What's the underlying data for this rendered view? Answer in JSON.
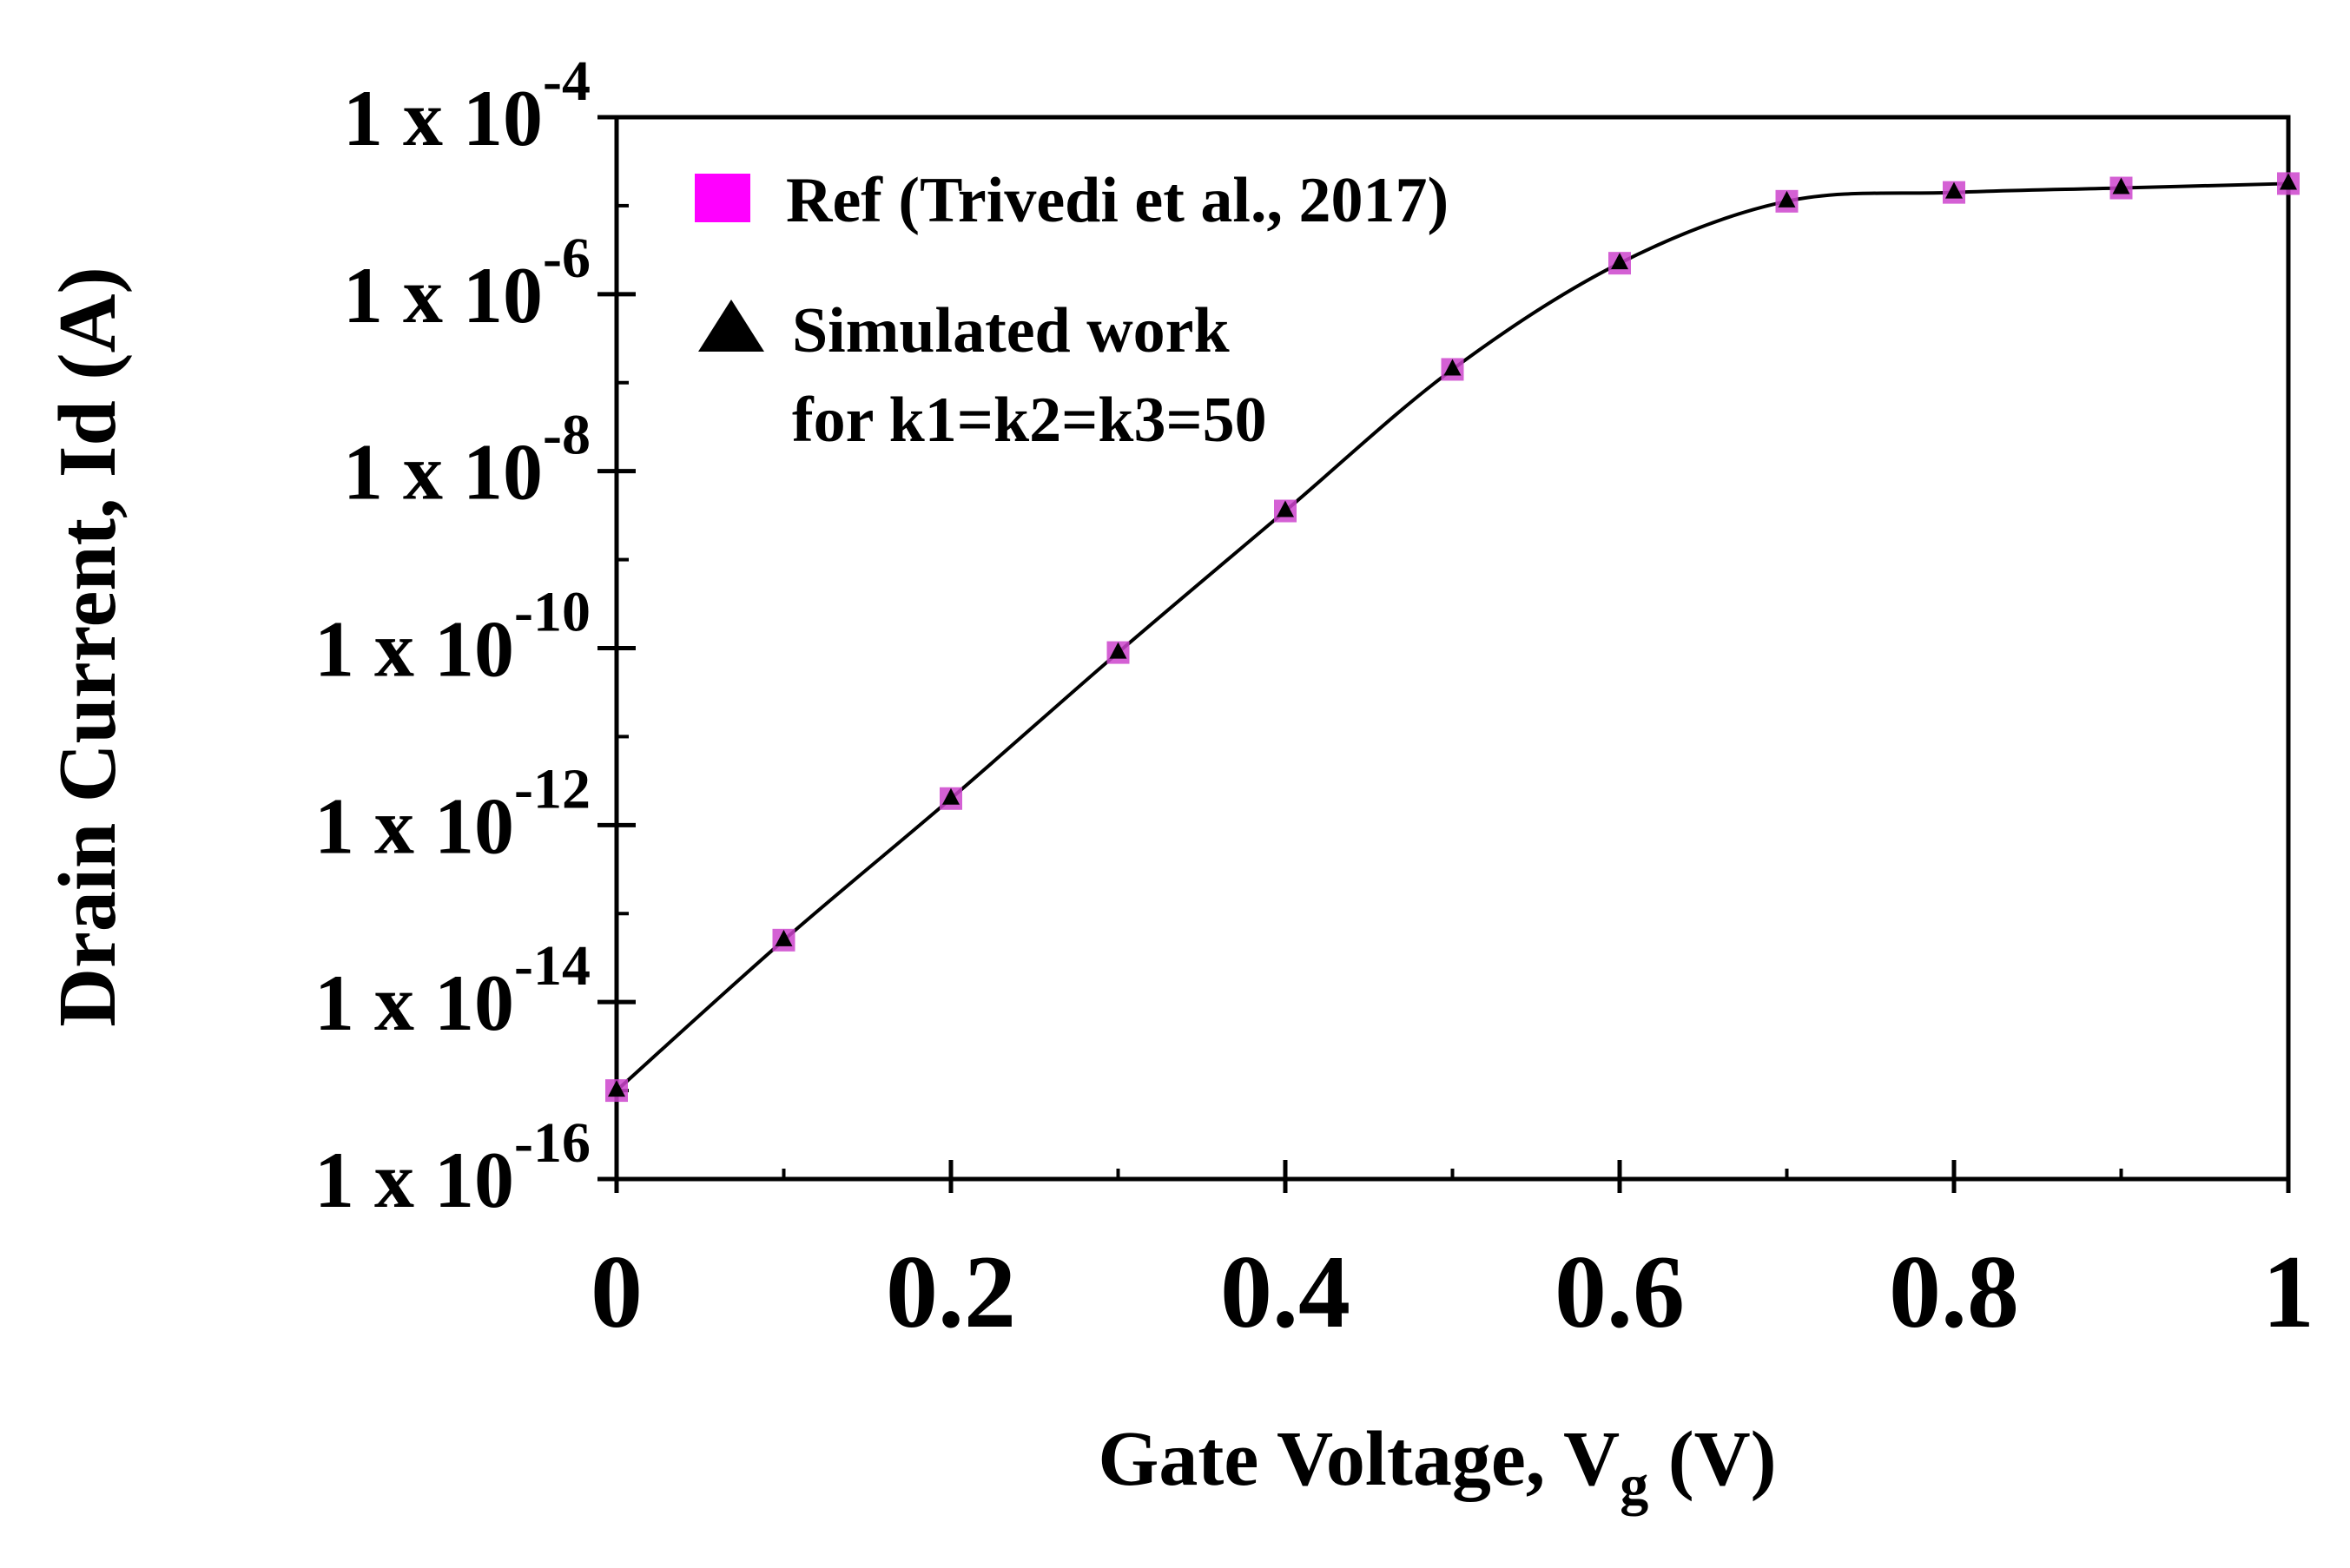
{
  "chart_data": {
    "type": "line",
    "title": "",
    "xlabel": {
      "main": "Gate Voltage, V",
      "sub": "g",
      "unit": "(V)"
    },
    "ylabel": "Drain Current, Id (A)",
    "x_scale": "linear",
    "y_scale": "log",
    "xlim": [
      0,
      1
    ],
    "ylim": [
      1e-16,
      0.0001
    ],
    "x_ticks": [
      {
        "value": 0,
        "label": "0"
      },
      {
        "value": 0.2,
        "label": "0.2"
      },
      {
        "value": 0.4,
        "label": "0.4"
      },
      {
        "value": 0.6,
        "label": "0.6"
      },
      {
        "value": 0.8,
        "label": "0.8"
      },
      {
        "value": 1.0,
        "label": "1"
      }
    ],
    "y_ticks": [
      {
        "exp": -4,
        "base": "1 x 10",
        "sup": "-4"
      },
      {
        "exp": -6,
        "base": "1 x 10",
        "sup": "-6"
      },
      {
        "exp": -8,
        "base": "1 x 10",
        "sup": "-8"
      },
      {
        "exp": -10,
        "base": "1 x 10",
        "sup": "-10"
      },
      {
        "exp": -12,
        "base": "1 x 10",
        "sup": "-12"
      },
      {
        "exp": -14,
        "base": "1 x 10",
        "sup": "-14"
      },
      {
        "exp": -16,
        "base": "1 x 10",
        "sup": "-16"
      }
    ],
    "legend": {
      "position": "top-left",
      "entries": [
        {
          "marker": "square",
          "color": "#ff00ff",
          "label": "Ref (Trivedi et al., 2017)"
        },
        {
          "marker": "triangle",
          "color": "#000000",
          "label": [
            "Simulated work",
            "for k1=k2=k3=50"
          ]
        }
      ]
    },
    "series": [
      {
        "name": "Ref (Trivedi et al., 2017)",
        "marker": "square",
        "color": "#cc44cc",
        "x": [
          0,
          0.1,
          0.2,
          0.3,
          0.4,
          0.5,
          0.6,
          0.7,
          0.8,
          0.9,
          1.0
        ],
        "log10_y": [
          -15.0,
          -13.3,
          -11.7,
          -10.05,
          -8.45,
          -6.85,
          -5.65,
          -4.95,
          -4.85,
          -4.8,
          -4.75
        ]
      },
      {
        "name": "Simulated work for k1=k2=k3=50",
        "marker": "triangle",
        "color": "#000000",
        "line": true,
        "x": [
          0,
          0.1,
          0.2,
          0.3,
          0.4,
          0.5,
          0.6,
          0.7,
          0.8,
          0.9,
          1.0
        ],
        "log10_y": [
          -15.0,
          -13.3,
          -11.7,
          -10.05,
          -8.45,
          -6.85,
          -5.65,
          -4.95,
          -4.85,
          -4.8,
          -4.75
        ]
      }
    ]
  }
}
